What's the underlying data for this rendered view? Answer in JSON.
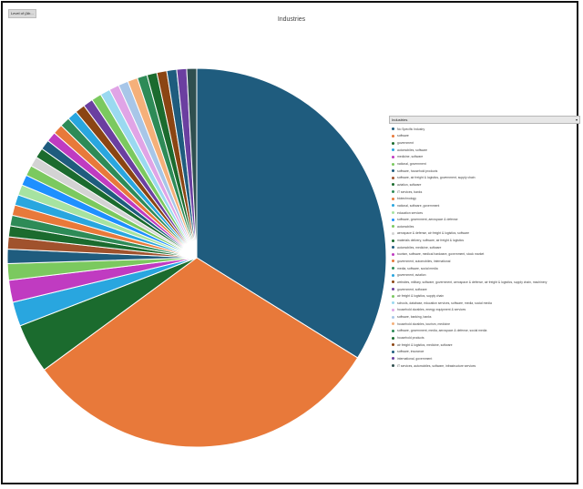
{
  "chip_label": "Level of (Ab...",
  "legend_title": "Industries",
  "chart_data": {
    "type": "pie",
    "title": "Industries",
    "legend_position": "right",
    "categories": [
      "No Specific Industry",
      "software",
      "government",
      "automobiles, software",
      "medicine, software",
      "national, government",
      "software, household products",
      "software, air freight & logistics, government, supply chain",
      "aviation, software",
      "IT services, banks",
      "biotechnology",
      "national, software, government",
      "education services",
      "software, government, aerospace & defense",
      "automobiles",
      "aerospace & defense, air freight & logistics, software",
      "materials delivery, software, air freight & logistics",
      "automobiles, medicine, software",
      "tourism, software, medical hardware, government, stock market",
      "government, automobiles, international",
      "media, software, social media",
      "government, aviation",
      "websites, military, software, government, aerospace & defense, air freight & logistics, supply chain, machinery",
      "government, software",
      "air freight & logistics, supply chain",
      "schools, database, education services, software, media, social media",
      "household durables, energy equipment & services",
      "software, banking, banks",
      "household durables, tourism, medicine",
      "software, government, media, aerospace & defense, social media",
      "household products",
      "air freight & logistics, medicine, software",
      "software, insurance",
      "international, government",
      "IT services, automobiles, software, infrastructure services"
    ],
    "values": [
      36,
      33,
      4.5,
      2.2,
      2.0,
      1.5,
      1.3,
      1.1,
      1.0,
      0.95,
      0.95,
      0.95,
      0.95,
      0.95,
      0.95,
      0.9,
      0.9,
      0.9,
      0.9,
      0.9,
      0.9,
      0.9,
      0.9,
      0.9,
      0.9,
      0.9,
      0.9,
      0.9,
      0.9,
      0.9,
      0.9,
      0.9,
      0.9,
      0.9,
      0.9
    ],
    "colors": [
      "#1f5c7e",
      "#e8793a",
      "#1b6b2e",
      "#29a6df",
      "#c03bc1",
      "#7bc95f",
      "#1f5c7e",
      "#a0522d",
      "#1b6b2e",
      "#2e8b57",
      "#e8793a",
      "#29a6df",
      "#a6e3a1",
      "#1e90ff",
      "#7bc95f",
      "#d3d3d3",
      "#1b6b2e",
      "#1f5c7e",
      "#c03bc1",
      "#e8793a",
      "#2e8b57",
      "#29a6df",
      "#8b4513",
      "#6b3fa0",
      "#7bc95f",
      "#9ad9f0",
      "#e0a4e6",
      "#a8c6e8",
      "#f5b07a",
      "#2e8b57",
      "#1b6b2e",
      "#8b4513",
      "#1f5c7e",
      "#6b3fa0",
      "#2f4f4f"
    ]
  }
}
